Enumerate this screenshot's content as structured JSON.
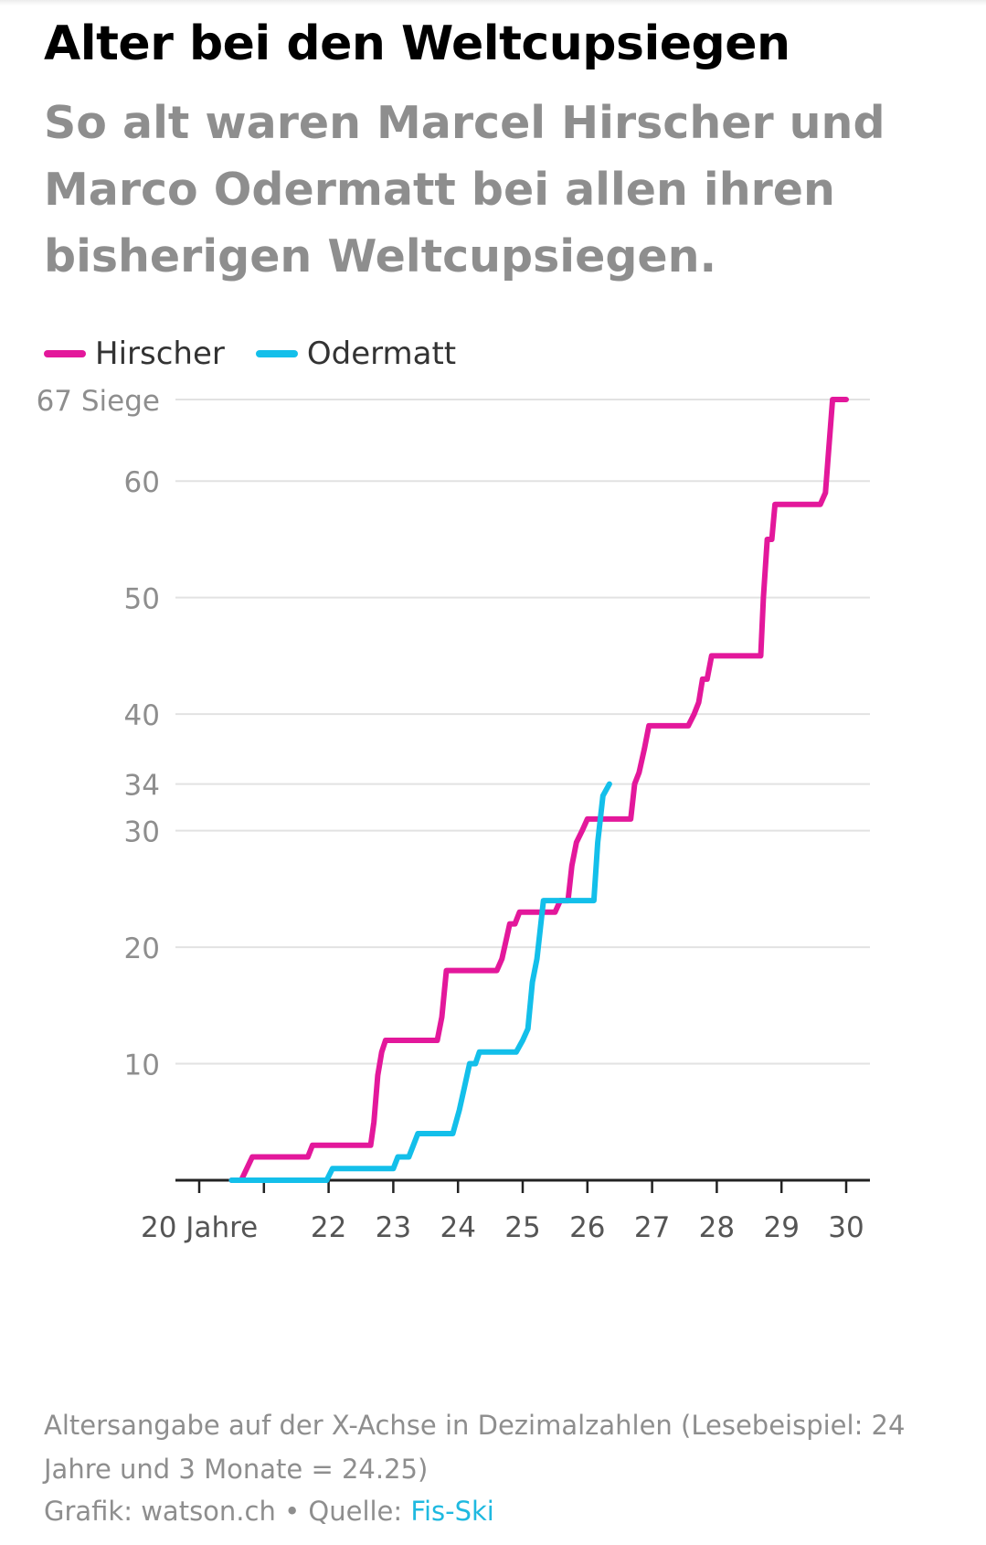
{
  "header": {
    "title": "Alter bei den Weltcupsiegen",
    "subtitle": "So alt waren Marcel Hirscher und Marco Odermatt bei allen ihren bisherigen Weltcupsiegen."
  },
  "legend": {
    "items": [
      {
        "label": "Hirscher",
        "color": "#e3189b"
      },
      {
        "label": "Odermatt",
        "color": "#13bfea"
      }
    ]
  },
  "footer": {
    "note": "Altersangabe auf der X-Achse in Dezimalzahlen (Lesebeispiel: 24 Jahre und 3 Monate = 24.25)",
    "credit_prefix": "Grafik: watson.ch • Quelle: ",
    "source_link": "Fis-Ski"
  },
  "chart_data": {
    "type": "line",
    "step": true,
    "xlim": [
      20,
      30
    ],
    "ylim": [
      0,
      67
    ],
    "grid": true,
    "legend_position": "top-left",
    "x_ticks": [
      {
        "value": 20,
        "label": "20 Jahre"
      },
      {
        "value": 21,
        "label": ""
      },
      {
        "value": 22,
        "label": "22"
      },
      {
        "value": 23,
        "label": "23"
      },
      {
        "value": 24,
        "label": "24"
      },
      {
        "value": 25,
        "label": "25"
      },
      {
        "value": 26,
        "label": "26"
      },
      {
        "value": 27,
        "label": "27"
      },
      {
        "value": 28,
        "label": "28"
      },
      {
        "value": 29,
        "label": "29"
      },
      {
        "value": 30,
        "label": "30"
      }
    ],
    "y_ticks": [
      {
        "value": 10,
        "label": "10"
      },
      {
        "value": 20,
        "label": "20"
      },
      {
        "value": 30,
        "label": "30"
      },
      {
        "value": 34,
        "label": "34"
      },
      {
        "value": 40,
        "label": "40"
      },
      {
        "value": 50,
        "label": "50"
      },
      {
        "value": 60,
        "label": "60"
      },
      {
        "value": 67,
        "label": "67 Siege"
      }
    ],
    "series": [
      {
        "name": "Hirscher",
        "color": "#e3189b",
        "points": [
          [
            20.5,
            0
          ],
          [
            20.65,
            0
          ],
          [
            20.82,
            2
          ],
          [
            21.68,
            2
          ],
          [
            21.75,
            3
          ],
          [
            22.65,
            3
          ],
          [
            22.7,
            5
          ],
          [
            22.76,
            9
          ],
          [
            22.82,
            11
          ],
          [
            22.88,
            12
          ],
          [
            23.68,
            12
          ],
          [
            23.75,
            14
          ],
          [
            23.82,
            18
          ],
          [
            24.6,
            18
          ],
          [
            24.68,
            19
          ],
          [
            24.76,
            21
          ],
          [
            24.8,
            22
          ],
          [
            24.88,
            22
          ],
          [
            24.95,
            23
          ],
          [
            25.5,
            23
          ],
          [
            25.58,
            24
          ],
          [
            25.7,
            24
          ],
          [
            25.76,
            27
          ],
          [
            25.83,
            29
          ],
          [
            25.92,
            30
          ],
          [
            26.0,
            31
          ],
          [
            26.67,
            31
          ],
          [
            26.73,
            34
          ],
          [
            26.8,
            35
          ],
          [
            26.88,
            37
          ],
          [
            26.95,
            39
          ],
          [
            27.56,
            39
          ],
          [
            27.65,
            40
          ],
          [
            27.72,
            41
          ],
          [
            27.78,
            43
          ],
          [
            27.85,
            43
          ],
          [
            27.92,
            45
          ],
          [
            28.68,
            45
          ],
          [
            28.72,
            50
          ],
          [
            28.78,
            55
          ],
          [
            28.85,
            55
          ],
          [
            28.9,
            58
          ],
          [
            29.6,
            58
          ],
          [
            29.68,
            59
          ],
          [
            29.72,
            62
          ],
          [
            29.79,
            67
          ],
          [
            30.0,
            67
          ]
        ]
      },
      {
        "name": "Odermatt",
        "color": "#13bfea",
        "points": [
          [
            20.5,
            0
          ],
          [
            21.97,
            0
          ],
          [
            22.06,
            1
          ],
          [
            23.0,
            1
          ],
          [
            23.07,
            2
          ],
          [
            23.24,
            2
          ],
          [
            23.38,
            4
          ],
          [
            23.92,
            4
          ],
          [
            24.02,
            6
          ],
          [
            24.1,
            8
          ],
          [
            24.18,
            10
          ],
          [
            24.27,
            10
          ],
          [
            24.33,
            11
          ],
          [
            24.9,
            11
          ],
          [
            25.0,
            12
          ],
          [
            25.08,
            13
          ],
          [
            25.15,
            17
          ],
          [
            25.22,
            19
          ],
          [
            25.32,
            24
          ],
          [
            26.1,
            24
          ],
          [
            26.16,
            29
          ],
          [
            26.24,
            33
          ],
          [
            26.34,
            34
          ]
        ]
      }
    ]
  }
}
